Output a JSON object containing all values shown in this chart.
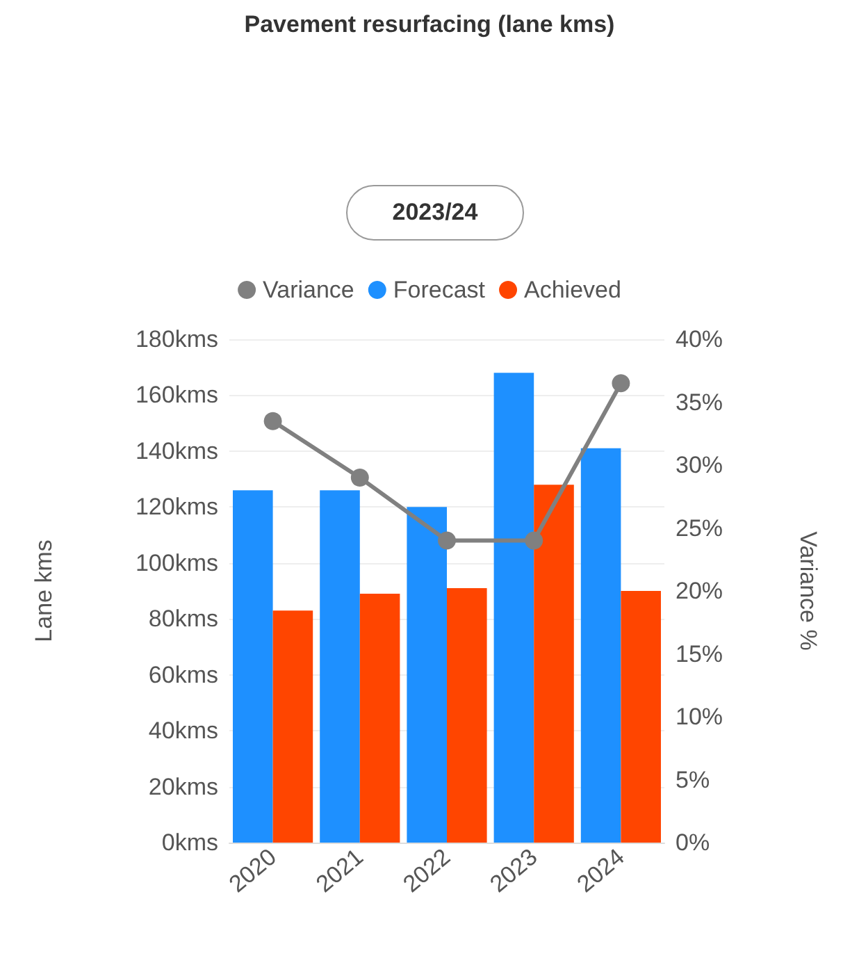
{
  "chart_data": {
    "type": "bar",
    "title": "Pavement resurfacing (lane kms)",
    "subtitle": "2023/24",
    "ylabel": "Lane kms",
    "y2label": "Variance %",
    "categories": [
      "2020",
      "2021",
      "2022",
      "2023",
      "2024"
    ],
    "series": [
      {
        "name": "Variance",
        "type": "line",
        "axis": "y2",
        "color": "#808080",
        "values": [
          33.5,
          29,
          24,
          24,
          36.5
        ]
      },
      {
        "name": "Forecast",
        "color": "#1e90ff",
        "values": [
          126,
          126,
          120,
          168,
          141
        ]
      },
      {
        "name": "Achieved",
        "color": "#ff4500",
        "values": [
          83,
          89,
          91,
          128,
          90
        ]
      }
    ],
    "ylim": [
      0,
      180
    ],
    "yticks": [
      {
        "value": 0,
        "label": "0kms"
      },
      {
        "value": 20,
        "label": "20kms"
      },
      {
        "value": 40,
        "label": "40kms"
      },
      {
        "value": 60,
        "label": "60kms"
      },
      {
        "value": 80,
        "label": "80kms"
      },
      {
        "value": 100,
        "label": "100kms"
      },
      {
        "value": 120,
        "label": "120kms"
      },
      {
        "value": 140,
        "label": "140kms"
      },
      {
        "value": 160,
        "label": "160kms"
      },
      {
        "value": 180,
        "label": "180kms"
      }
    ],
    "y2lim": [
      0,
      40
    ],
    "y2ticks": [
      {
        "value": 0,
        "label": "0%"
      },
      {
        "value": 5,
        "label": "5%"
      },
      {
        "value": 10,
        "label": "10%"
      },
      {
        "value": 15,
        "label": "15%"
      },
      {
        "value": 20,
        "label": "20%"
      },
      {
        "value": 25,
        "label": "25%"
      },
      {
        "value": 30,
        "label": "30%"
      },
      {
        "value": 35,
        "label": "35%"
      },
      {
        "value": 40,
        "label": "40%"
      }
    ],
    "grid": "y",
    "legend": "top",
    "marker": "circle",
    "line_style": "solid"
  }
}
